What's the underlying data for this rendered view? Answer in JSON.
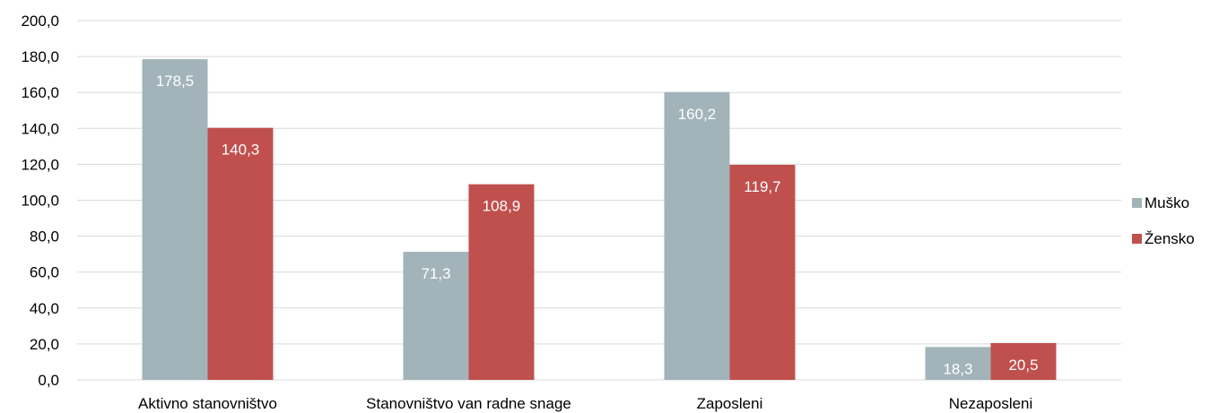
{
  "chart_data": {
    "type": "bar",
    "categories": [
      "Aktivno stanovništvo",
      "Stanovništvo van radne snage",
      "Zaposleni",
      "Nezaposleni"
    ],
    "series": [
      {
        "name": "Muško",
        "color": "#A2B4BA",
        "values": [
          178.5,
          71.3,
          160.2,
          18.3
        ],
        "labels": [
          "178,5",
          "71,3",
          "160,2",
          "18,3"
        ]
      },
      {
        "name": "Žensko",
        "color": "#C0504D",
        "values": [
          140.3,
          108.9,
          119.7,
          20.5
        ],
        "labels": [
          "140,3",
          "108,9",
          "119,7",
          "20,5"
        ]
      }
    ],
    "ylim": [
      0,
      200
    ],
    "yticks": [
      0,
      20,
      40,
      60,
      80,
      100,
      120,
      140,
      160,
      180,
      200
    ],
    "ytick_labels": [
      "0,0",
      "20,0",
      "40,0",
      "60,0",
      "80,0",
      "100,0",
      "120,0",
      "140,0",
      "160,0",
      "180,0",
      "200,0"
    ],
    "grid": true,
    "gridColor": "#D9D9D9",
    "legend_position": "right"
  }
}
